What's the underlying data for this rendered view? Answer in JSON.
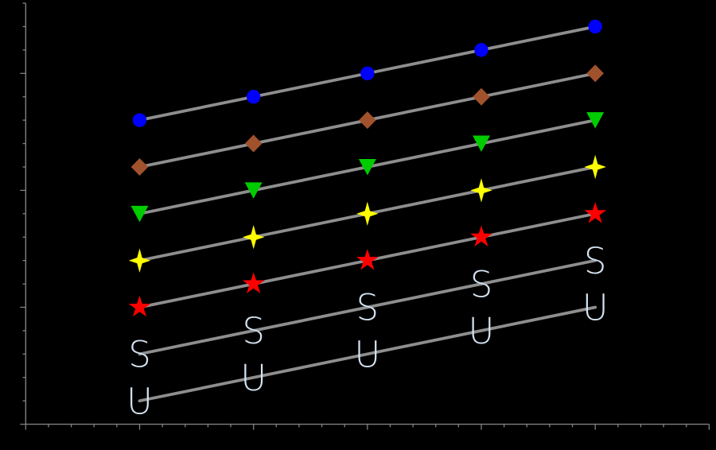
{
  "figure": {
    "background_color": "#000000",
    "title": "",
    "visible_text_markers": [
      "S",
      "U"
    ]
  },
  "chart_data": {
    "type": "line",
    "title": "",
    "xlabel": "",
    "ylabel": "",
    "x": [
      0,
      1,
      2,
      3,
      4
    ],
    "xlim": [
      -1,
      5
    ],
    "ylim": [
      0,
      18
    ],
    "x_major_tick_step": 1,
    "x_minor_tick_step": 0.2,
    "y_major_tick_step": 5,
    "y_minor_tick_step": 1,
    "tick_labels_visible": false,
    "grid": false,
    "legend_position": "none",
    "axis_color": "#808080",
    "line_color": "#8e8e8e",
    "line_width": 3.8,
    "series": [
      {
        "name": "circle-series",
        "marker": "circle",
        "color": "#0000ff",
        "values": [
          13,
          14,
          15,
          16,
          17
        ]
      },
      {
        "name": "diamond-series",
        "marker": "diamond",
        "color": "#a0522d",
        "values": [
          11,
          12,
          13,
          14,
          15
        ]
      },
      {
        "name": "triangle-down-series",
        "marker": "triangle-down",
        "color": "#00cc00",
        "values": [
          9,
          10,
          11,
          12,
          13
        ]
      },
      {
        "name": "four-point-star-series",
        "marker": "star4",
        "color": "#ffff00",
        "values": [
          7,
          8,
          9,
          10,
          11
        ]
      },
      {
        "name": "five-point-star-series",
        "marker": "star5",
        "color": "#ff0000",
        "values": [
          5,
          6,
          7,
          8,
          9
        ]
      },
      {
        "name": "letter-s-series",
        "marker": "text",
        "text": "S",
        "color": "#d4e2f0",
        "values": [
          3,
          4,
          5,
          6,
          7
        ]
      },
      {
        "name": "letter-u-series",
        "marker": "text",
        "text": "U",
        "color": "#d4e2f0",
        "values": [
          1,
          2,
          3,
          4,
          5
        ]
      }
    ]
  }
}
